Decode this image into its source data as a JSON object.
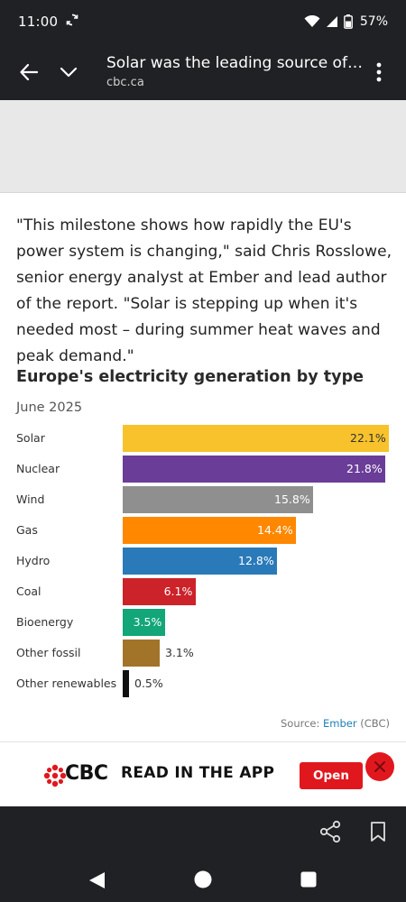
{
  "status_bar": {
    "time": "11:00",
    "battery": "57%"
  },
  "toolbar": {
    "title": "Solar was the leading source of electricity in the EU in June",
    "url": "cbc.ca"
  },
  "article": {
    "paragraph": "\"This milestone shows how rapidly the EU's power system is changing,\" said Chris Rosslowe, senior energy analyst at Ember and lead author of the report. \"Solar is stepping up when it's needed most – during summer heat waves and peak demand.\""
  },
  "chart_data": {
    "type": "bar",
    "orientation": "horizontal",
    "title": "Europe's electricity generation by type",
    "subtitle": "June 2025",
    "categories": [
      "Solar",
      "Nuclear",
      "Wind",
      "Gas",
      "Hydro",
      "Coal",
      "Bioenergy",
      "Other fossil",
      "Other renewables"
    ],
    "values": [
      22.1,
      21.8,
      15.8,
      14.4,
      12.8,
      6.1,
      3.5,
      3.1,
      0.5
    ],
    "value_labels": [
      "22.1%",
      "21.8%",
      "15.8%",
      "14.4%",
      "12.8%",
      "6.1%",
      "3.5%",
      "3.1%",
      "0.5%"
    ],
    "colors": [
      "#f7c22b",
      "#6a3d98",
      "#8f8f8f",
      "#ff8800",
      "#2a7ab9",
      "#cc2229",
      "#12a678",
      "#a27429",
      "#111111"
    ],
    "label_colors": [
      "#333333",
      "#ffffff",
      "#ffffff",
      "#ffffff",
      "#ffffff",
      "#ffffff",
      "#ffffff",
      "#333333",
      "#333333"
    ],
    "xlim": [
      0,
      22.1
    ],
    "source_prefix": "Source: ",
    "source_link": "Ember",
    "source_suffix": " (CBC)"
  },
  "cbc_banner": {
    "brand": "CBC",
    "cta": "READ IN THE APP",
    "open_label": "Open"
  }
}
